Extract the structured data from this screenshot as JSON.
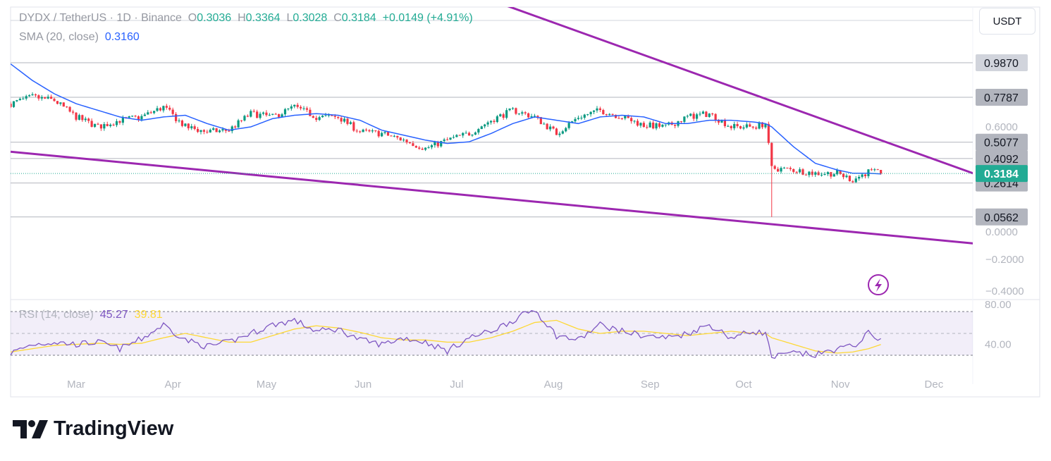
{
  "header": {
    "symbol": "DYDX / TetherUS · 1D · Binance",
    "o_label": "O",
    "o": "0.3036",
    "h_label": "H",
    "h": "0.3364",
    "l_label": "L",
    "l": "0.3028",
    "c_label": "C",
    "c": "0.3184",
    "change": "+0.0149 (+4.91%)"
  },
  "sma": {
    "label": "SMA (20, close)",
    "value": "0.3160"
  },
  "rsi": {
    "label": "RSI (14, close)",
    "value": "45.27",
    "ma_value": "39.81",
    "ticks": [
      "80.00",
      "40.00"
    ]
  },
  "currency_button": "USDT",
  "brand": "TradingView",
  "icons": {
    "logo": "tradingview-logo",
    "flash": "lightning-icon"
  },
  "colors": {
    "up": "#089981",
    "down": "#f23645",
    "sma": "#2962ff",
    "trendline": "#9c27b0",
    "rsi": "#7e57c2",
    "rsi_ma": "#fdd835",
    "last_price": "#22ab94"
  },
  "chart_data": {
    "type": "candlestick",
    "interval": "1D",
    "x_ticks": [
      "Mar",
      "Apr",
      "May",
      "Jun",
      "Jul",
      "Aug",
      "Sep",
      "Oct",
      "Nov",
      "Dec"
    ],
    "y_ticks": [
      "0.6000",
      "0.0000",
      "−0.2000",
      "−0.4000"
    ],
    "dates": [
      "2025-02-08",
      "2025-02-15",
      "2025-02-22",
      "2025-03-01",
      "2025-03-08",
      "2025-03-15",
      "2025-03-22",
      "2025-03-29",
      "2025-04-05",
      "2025-04-12",
      "2025-04-19",
      "2025-04-26",
      "2025-05-03",
      "2025-05-10",
      "2025-05-17",
      "2025-05-24",
      "2025-05-31",
      "2025-06-07",
      "2025-06-14",
      "2025-06-21",
      "2025-06-28",
      "2025-07-05",
      "2025-07-12",
      "2025-07-19",
      "2025-07-26",
      "2025-08-02",
      "2025-08-09",
      "2025-08-16",
      "2025-08-23",
      "2025-08-30",
      "2025-09-06",
      "2025-09-13",
      "2025-09-20",
      "2025-09-27",
      "2025-10-04",
      "2025-10-08",
      "2025-10-10",
      "2025-10-17",
      "2025-10-24",
      "2025-10-31",
      "2025-11-05",
      "2025-11-10",
      "2025-11-14"
    ],
    "close": [
      0.74,
      0.78,
      0.76,
      0.66,
      0.6,
      0.64,
      0.66,
      0.72,
      0.6,
      0.57,
      0.58,
      0.68,
      0.66,
      0.72,
      0.66,
      0.66,
      0.57,
      0.56,
      0.52,
      0.47,
      0.52,
      0.56,
      0.64,
      0.7,
      0.66,
      0.56,
      0.66,
      0.7,
      0.66,
      0.61,
      0.6,
      0.66,
      0.68,
      0.6,
      0.6,
      0.62,
      0.35,
      0.34,
      0.32,
      0.32,
      0.28,
      0.33,
      0.3184
    ],
    "sma20": [
      0.98,
      0.88,
      0.8,
      0.74,
      0.7,
      0.66,
      0.64,
      0.66,
      0.67,
      0.62,
      0.58,
      0.6,
      0.65,
      0.67,
      0.68,
      0.67,
      0.64,
      0.58,
      0.55,
      0.52,
      0.5,
      0.51,
      0.56,
      0.62,
      0.66,
      0.64,
      0.62,
      0.66,
      0.67,
      0.66,
      0.62,
      0.62,
      0.64,
      0.64,
      0.63,
      0.62,
      0.6,
      0.48,
      0.38,
      0.34,
      0.32,
      0.32,
      0.316
    ],
    "rsi14": [
      32,
      40,
      42,
      40,
      42,
      36,
      45,
      58,
      44,
      38,
      42,
      50,
      58,
      62,
      52,
      54,
      44,
      40,
      46,
      42,
      34,
      46,
      52,
      62,
      72,
      48,
      44,
      58,
      52,
      48,
      46,
      50,
      58,
      46,
      52,
      50,
      28,
      32,
      30,
      36,
      38,
      50,
      45.27
    ],
    "rsi_ma": [
      33,
      36,
      39,
      40,
      41,
      40,
      41,
      46,
      50,
      46,
      42,
      42,
      48,
      54,
      57,
      55,
      51,
      46,
      44,
      44,
      42,
      42,
      46,
      52,
      60,
      62,
      54,
      50,
      52,
      52,
      50,
      48,
      50,
      52,
      50,
      50,
      46,
      40,
      34,
      32,
      33,
      36,
      39.81
    ],
    "rsi_levels": [
      70,
      50,
      30
    ],
    "wick_low": {
      "date": "2025-10-10",
      "value": 0.0562
    },
    "price_levels": [
      "0.9870",
      "0.7787",
      "0.5077",
      "0.4092",
      "0.2614",
      "0.0562"
    ],
    "last_price": "0.3184",
    "trendlines": [
      {
        "from": [
          "2025-07-15",
          1.345
        ],
        "to": [
          "2025-12-15",
          0.31
        ]
      },
      {
        "from": [
          "2025-02-08",
          0.45
        ],
        "to": [
          "2025-12-15",
          -0.106
        ]
      }
    ]
  }
}
